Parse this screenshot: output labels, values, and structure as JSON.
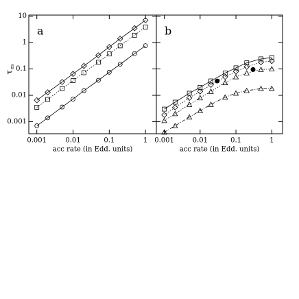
{
  "chart_data": [
    {
      "type": "line",
      "panel_label": "a",
      "x_label": "acc rate (in Edd. units)",
      "y_label": "τ",
      "y_label_subscript": "es",
      "log_x": true,
      "log_y": true,
      "xlim": [
        0.0006,
        2
      ],
      "ylim": [
        0.00035,
        11
      ],
      "xticks": [
        0.001,
        0.01,
        0.1,
        1
      ],
      "yticks": [
        0.001,
        0.01,
        0.1,
        1,
        10
      ],
      "x": [
        0.001,
        0.002,
        0.005,
        0.01,
        0.02,
        0.05,
        0.1,
        0.2,
        0.5,
        1
      ],
      "series": [
        {
          "color": "#000",
          "dash": "solid",
          "marker": "diamond",
          "values": [
            0.0065,
            0.013,
            0.032,
            0.065,
            0.13,
            0.33,
            0.68,
            1.4,
            3.5,
            7
          ]
        },
        {
          "color": "#000",
          "dash": "dotted",
          "marker": "square",
          "values": [
            0.0035,
            0.007,
            0.018,
            0.036,
            0.072,
            0.18,
            0.37,
            0.75,
            1.9,
            3.9
          ]
        },
        {
          "color": "#000",
          "dash": "solid",
          "marker": "circle",
          "values": [
            0.0007,
            0.0014,
            0.0036,
            0.0072,
            0.015,
            0.037,
            0.075,
            0.15,
            0.38,
            0.76
          ]
        }
      ]
    },
    {
      "type": "line",
      "panel_label": "b",
      "x_label": "acc rate (in Edd. units)",
      "log_x": true,
      "log_y": true,
      "xlim": [
        0.0006,
        2
      ],
      "ylim": [
        0.00035,
        11
      ],
      "xticks": [
        0.001,
        0.01,
        0.1,
        1
      ],
      "x": [
        0.001,
        0.002,
        0.005,
        0.01,
        0.02,
        0.05,
        0.1,
        0.2,
        0.5,
        1
      ],
      "series": [
        {
          "color": "#000",
          "dash": "solid",
          "marker": "square",
          "values": [
            0.003,
            0.0055,
            0.012,
            0.02,
            0.035,
            0.07,
            0.11,
            0.17,
            0.24,
            0.27
          ]
        },
        {
          "color": "#000",
          "dash": "dotted",
          "marker": "diamond",
          "values": [
            0.0018,
            0.0035,
            0.008,
            0.014,
            0.025,
            0.05,
            0.08,
            0.12,
            0.18,
            0.2
          ]
        },
        {
          "color": "#000",
          "dash": "dotted",
          "marker": "triangle",
          "values": [
            0.0011,
            0.002,
            0.0045,
            0.008,
            0.014,
            0.03,
            0.05,
            0.07,
            0.095,
            0.1
          ]
        },
        {
          "color": "#000",
          "dash": "dashdot",
          "marker": "triangle",
          "values": [
            0.0004,
            0.0007,
            0.0015,
            0.0026,
            0.0045,
            0.0085,
            0.012,
            0.015,
            0.018,
            0.018
          ]
        }
      ],
      "highlight_points": {
        "x": [
          0.03,
          0.3
        ],
        "values": [
          0.035,
          0.095
        ],
        "color": "#000"
      }
    }
  ]
}
